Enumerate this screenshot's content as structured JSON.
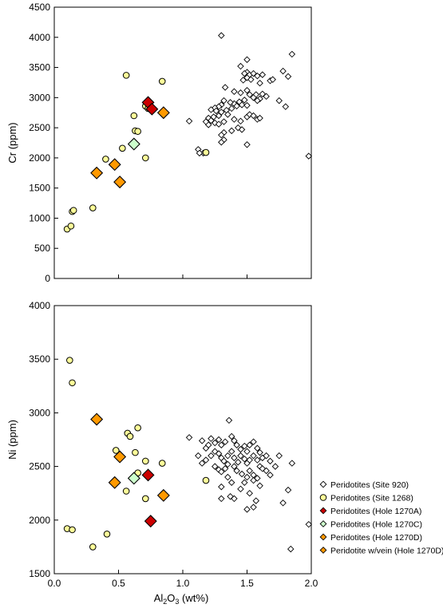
{
  "chart_data": [
    {
      "type": "scatter",
      "title": "",
      "xlabel": "",
      "ylabel": "Cr (ppm)",
      "xlim": [
        0,
        2.0
      ],
      "ylim": [
        0,
        4500
      ],
      "x_ticks": [
        0,
        0.5,
        1.0,
        1.5,
        2.0
      ],
      "x_tick_labels_shown": false,
      "y_ticks": [
        0,
        500,
        1000,
        1500,
        2000,
        2500,
        3000,
        3500,
        4000,
        4500
      ],
      "grid": false,
      "series": [
        {
          "name": "Peridotites (Site 920)",
          "marker": "diamond-small",
          "fill": "#ffffff",
          "points": [
            [
              1.3,
              4030
            ],
            [
              1.5,
              3630
            ],
            [
              1.45,
              3520
            ],
            [
              1.5,
              3420
            ],
            [
              1.48,
              3400
            ],
            [
              1.52,
              3380
            ],
            [
              1.55,
              3400
            ],
            [
              1.58,
              3360
            ],
            [
              1.62,
              3380
            ],
            [
              1.5,
              3330
            ],
            [
              1.53,
              3300
            ],
            [
              1.47,
              3290
            ],
            [
              1.6,
              3240
            ],
            [
              1.68,
              3280
            ],
            [
              1.7,
              3300
            ],
            [
              1.78,
              3440
            ],
            [
              1.82,
              3350
            ],
            [
              1.85,
              3720
            ],
            [
              1.33,
              3170
            ],
            [
              1.4,
              3100
            ],
            [
              1.45,
              3080
            ],
            [
              1.5,
              3120
            ],
            [
              1.52,
              3050
            ],
            [
              1.57,
              3050
            ],
            [
              1.62,
              3060
            ],
            [
              1.65,
              3020
            ],
            [
              1.55,
              3000
            ],
            [
              1.6,
              2980
            ],
            [
              1.58,
              2950
            ],
            [
              1.48,
              2960
            ],
            [
              1.44,
              2930
            ],
            [
              1.4,
              2900
            ],
            [
              1.37,
              2920
            ],
            [
              1.32,
              2950
            ],
            [
              1.3,
              2880
            ],
            [
              1.28,
              2850
            ],
            [
              1.25,
              2830
            ],
            [
              1.22,
              2800
            ],
            [
              1.26,
              2780
            ],
            [
              1.3,
              2760
            ],
            [
              1.34,
              2790
            ],
            [
              1.38,
              2820
            ],
            [
              1.42,
              2860
            ],
            [
              1.46,
              2880
            ],
            [
              1.5,
              2870
            ],
            [
              1.35,
              2720
            ],
            [
              1.28,
              2700
            ],
            [
              1.24,
              2680
            ],
            [
              1.2,
              2660
            ],
            [
              1.22,
              2620
            ],
            [
              1.25,
              2580
            ],
            [
              1.28,
              2560
            ],
            [
              1.32,
              2600
            ],
            [
              1.4,
              2640
            ],
            [
              1.45,
              2610
            ],
            [
              1.5,
              2680
            ],
            [
              1.52,
              2720
            ],
            [
              1.55,
              2700
            ],
            [
              1.58,
              2640
            ],
            [
              1.6,
              2660
            ],
            [
              1.43,
              2500
            ],
            [
              1.46,
              2470
            ],
            [
              1.38,
              2450
            ],
            [
              1.32,
              2420
            ],
            [
              1.3,
              2380
            ],
            [
              1.2,
              2550
            ],
            [
              1.18,
              2600
            ],
            [
              1.75,
              2950
            ],
            [
              1.8,
              2850
            ],
            [
              1.32,
              2300
            ],
            [
              1.3,
              2260
            ],
            [
              1.5,
              2220
            ],
            [
              1.05,
              2610
            ],
            [
              1.12,
              2140
            ],
            [
              1.16,
              2080
            ],
            [
              1.13,
              2080
            ],
            [
              1.98,
              2030
            ]
          ]
        },
        {
          "name": "Peridotites (Site 1268)",
          "marker": "circle",
          "fill": "#ffff99",
          "points": [
            [
              0.1,
              820
            ],
            [
              0.13,
              870
            ],
            [
              0.14,
              1110
            ],
            [
              0.15,
              1130
            ],
            [
              0.3,
              1170
            ],
            [
              0.4,
              1980
            ],
            [
              0.53,
              2160
            ],
            [
              0.56,
              3370
            ],
            [
              0.62,
              2700
            ],
            [
              0.63,
              2450
            ],
            [
              0.65,
              2440
            ],
            [
              0.71,
              2000
            ],
            [
              0.71,
              2860
            ],
            [
              0.73,
              2820
            ],
            [
              0.84,
              3270
            ],
            [
              1.18,
              2090
            ]
          ]
        },
        {
          "name": "Peridotites (Hole 1270A)",
          "marker": "diamond",
          "fill": "#cc0000",
          "points": [
            [
              0.73,
              2920
            ],
            [
              0.76,
              2810
            ]
          ]
        },
        {
          "name": "Peridotites (Hole 1270C)",
          "marker": "diamond",
          "fill": "#ccffcc",
          "points": [
            [
              0.62,
              2230
            ]
          ]
        },
        {
          "name": "Peridotites (Hole 1270D)",
          "marker": "diamond",
          "fill": "#ff9900",
          "points": [
            [
              0.33,
              1750
            ],
            [
              0.47,
              1890
            ],
            [
              0.51,
              1600
            ],
            [
              0.85,
              2750
            ]
          ]
        },
        {
          "name": "Peridotite w/vein (Hole 1270D)",
          "marker": "diamond",
          "fill": "#ff9900",
          "points": []
        }
      ]
    },
    {
      "type": "scatter",
      "title": "",
      "xlabel": "Al2O3 (wt%)",
      "ylabel": "Ni (ppm)",
      "xlim": [
        0,
        2.0
      ],
      "ylim": [
        1500,
        4000
      ],
      "x_ticks": [
        0,
        0.5,
        1.0,
        1.5,
        2.0
      ],
      "x_tick_labels_shown": true,
      "y_ticks": [
        1500,
        2000,
        2500,
        3000,
        3500,
        4000
      ],
      "grid": false,
      "series": [
        {
          "name": "Peridotites (Site 920)",
          "marker": "diamond-small",
          "fill": "#ffffff",
          "points": [
            [
              1.05,
              2770
            ],
            [
              1.12,
              2600
            ],
            [
              1.15,
              2740
            ],
            [
              1.18,
              2670
            ],
            [
              1.2,
              2700
            ],
            [
              1.22,
              2760
            ],
            [
              1.25,
              2720
            ],
            [
              1.28,
              2750
            ],
            [
              1.3,
              2700
            ],
            [
              1.33,
              2730
            ],
            [
              1.36,
              2930
            ],
            [
              1.38,
              2780
            ],
            [
              1.4,
              2740
            ],
            [
              1.42,
              2700
            ],
            [
              1.45,
              2660
            ],
            [
              1.48,
              2690
            ],
            [
              1.5,
              2640
            ],
            [
              1.52,
              2700
            ],
            [
              1.55,
              2730
            ],
            [
              1.58,
              2670
            ],
            [
              1.6,
              2630
            ],
            [
              1.62,
              2580
            ],
            [
              1.65,
              2600
            ],
            [
              1.68,
              2550
            ],
            [
              1.72,
              2500
            ],
            [
              1.75,
              2600
            ],
            [
              1.85,
              2530
            ],
            [
              1.15,
              2530
            ],
            [
              1.18,
              2560
            ],
            [
              1.22,
              2600
            ],
            [
              1.25,
              2640
            ],
            [
              1.28,
              2620
            ],
            [
              1.3,
              2580
            ],
            [
              1.32,
              2550
            ],
            [
              1.35,
              2600
            ],
            [
              1.38,
              2640
            ],
            [
              1.4,
              2580
            ],
            [
              1.43,
              2540
            ],
            [
              1.45,
              2600
            ],
            [
              1.48,
              2570
            ],
            [
              1.5,
              2530
            ],
            [
              1.52,
              2560
            ],
            [
              1.55,
              2600
            ],
            [
              1.58,
              2560
            ],
            [
              1.6,
              2500
            ],
            [
              1.62,
              2480
            ],
            [
              1.65,
              2460
            ],
            [
              1.68,
              2420
            ],
            [
              1.25,
              2500
            ],
            [
              1.28,
              2470
            ],
            [
              1.3,
              2450
            ],
            [
              1.33,
              2480
            ],
            [
              1.35,
              2520
            ],
            [
              1.4,
              2500
            ],
            [
              1.42,
              2460
            ],
            [
              1.46,
              2430
            ],
            [
              1.5,
              2400
            ],
            [
              1.52,
              2460
            ],
            [
              1.55,
              2420
            ],
            [
              1.58,
              2390
            ],
            [
              1.35,
              2400
            ],
            [
              1.38,
              2350
            ],
            [
              1.48,
              2350
            ],
            [
              1.55,
              2370
            ],
            [
              1.6,
              2320
            ],
            [
              1.3,
              2310
            ],
            [
              1.3,
              2200
            ],
            [
              1.4,
              2200
            ],
            [
              1.37,
              2220
            ],
            [
              1.45,
              2290
            ],
            [
              1.52,
              2250
            ],
            [
              1.55,
              2120
            ],
            [
              1.57,
              2180
            ],
            [
              1.5,
              2100
            ],
            [
              1.78,
              2160
            ],
            [
              1.82,
              2280
            ],
            [
              1.84,
              1730
            ],
            [
              1.98,
              1960
            ]
          ]
        },
        {
          "name": "Peridotites (Site 1268)",
          "marker": "circle",
          "fill": "#ffff99",
          "points": [
            [
              0.12,
              3490
            ],
            [
              0.14,
              3280
            ],
            [
              0.1,
              1920
            ],
            [
              0.14,
              1910
            ],
            [
              0.3,
              1750
            ],
            [
              0.41,
              1870
            ],
            [
              0.48,
              2650
            ],
            [
              0.56,
              2270
            ],
            [
              0.57,
              2810
            ],
            [
              0.59,
              2780
            ],
            [
              0.63,
              2630
            ],
            [
              0.65,
              2860
            ],
            [
              0.71,
              2550
            ],
            [
              0.71,
              2200
            ],
            [
              0.84,
              2530
            ],
            [
              1.18,
              2370
            ],
            [
              0.65,
              2440
            ]
          ]
        },
        {
          "name": "Peridotites (Hole 1270A)",
          "marker": "diamond",
          "fill": "#cc0000",
          "points": [
            [
              0.73,
              2420
            ],
            [
              0.75,
              1990
            ]
          ]
        },
        {
          "name": "Peridotites (Hole 1270C)",
          "marker": "diamond",
          "fill": "#ccffcc",
          "points": [
            [
              0.62,
              2390
            ]
          ]
        },
        {
          "name": "Peridotites (Hole 1270D)",
          "marker": "diamond",
          "fill": "#ff9900",
          "points": [
            [
              0.33,
              2940
            ],
            [
              0.47,
              2350
            ],
            [
              0.51,
              2590
            ],
            [
              0.85,
              2230
            ]
          ]
        },
        {
          "name": "Peridotite w/vein (Hole 1270D)",
          "marker": "diamond",
          "fill": "#ff9900",
          "points": []
        }
      ]
    }
  ],
  "x_axis_label": {
    "main": "Al",
    "sub1": "2",
    "mid": "O",
    "sub2": "3",
    "tail": " (wt%)"
  },
  "legend": {
    "placement": "bottom-right",
    "items": [
      {
        "label": "Peridotites (Site 920)",
        "marker": "diamond-small",
        "fill": "#ffffff"
      },
      {
        "label": "Peridotites (Site 1268)",
        "marker": "circle",
        "fill": "#ffff99"
      },
      {
        "label": "Peridotites (Hole 1270A)",
        "marker": "diamond",
        "fill": "#cc0000"
      },
      {
        "label": "Peridotites (Hole 1270C)",
        "marker": "diamond",
        "fill": "#ccffcc"
      },
      {
        "label": "Peridotites (Hole 1270D)",
        "marker": "diamond",
        "fill": "#ff9900"
      },
      {
        "label": "Peridotite w/vein (Hole 1270D)",
        "marker": "diamond",
        "fill": "#ff9900"
      }
    ]
  }
}
